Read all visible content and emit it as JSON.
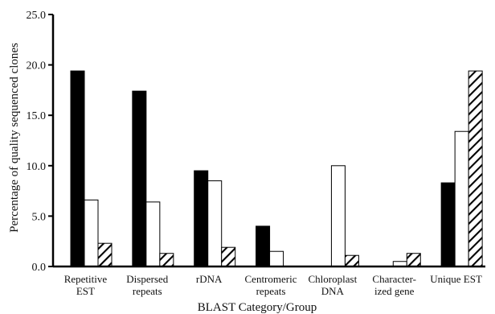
{
  "chart_data": {
    "type": "bar",
    "title": "",
    "xlabel": "BLAST Category/Group",
    "ylabel": "Percentage of quality sequenced clones",
    "ylim": [
      0,
      25
    ],
    "yticks": [
      "0.0",
      "5.0",
      "10.0",
      "15.0",
      "20.0",
      "25.0"
    ],
    "categories": [
      [
        "Repetitive",
        "EST"
      ],
      [
        "Dispersed",
        "repeats"
      ],
      [
        "rDNA"
      ],
      [
        "Centromeric",
        "repeats"
      ],
      [
        "Chloroplast",
        "DNA"
      ],
      [
        "Character-",
        "ized gene"
      ],
      [
        "Unique EST"
      ]
    ],
    "series": [
      {
        "fill": "solid-black",
        "values": [
          19.4,
          17.4,
          9.5,
          4.0,
          0,
          0,
          8.3
        ]
      },
      {
        "fill": "white",
        "values": [
          6.6,
          6.4,
          8.5,
          1.5,
          10.0,
          0.5,
          13.4
        ]
      },
      {
        "fill": "diagonal-hatch",
        "values": [
          2.3,
          1.3,
          1.9,
          0,
          1.1,
          1.3,
          19.4
        ]
      }
    ],
    "grid": false,
    "legend": "none"
  },
  "colors": {
    "axis": "#000000",
    "bar_solid": "#000000",
    "bar_white": "#ffffff",
    "hatch": "#000000",
    "text": "#111111"
  }
}
